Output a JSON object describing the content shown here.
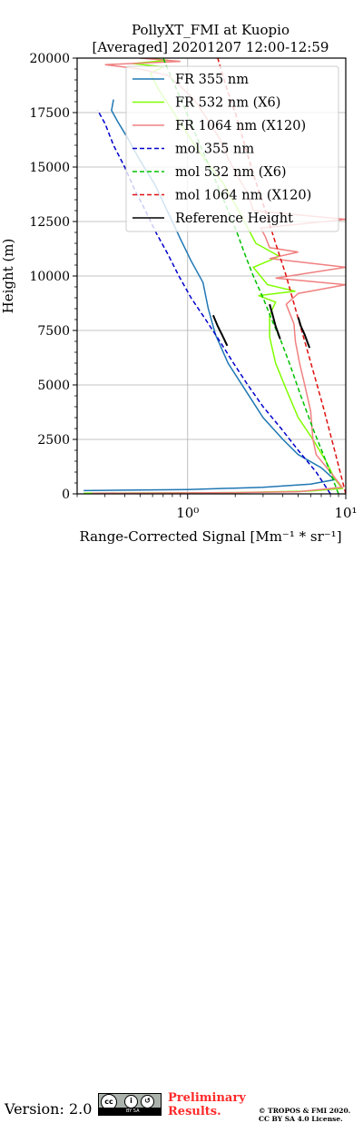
{
  "chart_data": {
    "type": "line",
    "title_line1": "PollyXT_FMI at Kuopio",
    "title_line2": "[Averaged] 20201207 12:00-12:59",
    "xlabel": "Range-Corrected Signal [Mm⁻¹ * sr⁻¹]",
    "ylabel": "Height (m)",
    "xscale": "log",
    "xlim": [
      0.2,
      10
    ],
    "ylim": [
      0,
      20000
    ],
    "xticks": [
      {
        "value": 1,
        "label": "10⁰"
      },
      {
        "value": 10,
        "label": "10¹"
      }
    ],
    "yticks": [
      0,
      2500,
      5000,
      7500,
      10000,
      12500,
      15000,
      17500,
      20000
    ],
    "ytick_labels": [
      "0",
      "2500",
      "5000",
      "7500",
      "10000",
      "12500",
      "15000",
      "17500",
      "20000"
    ],
    "grid": true,
    "legend_position": "top-right",
    "series": [
      {
        "name": "FR 355 nm",
        "color": "#1f77b4",
        "style": "solid",
        "points": [
          [
            0.22,
            150
          ],
          [
            1,
            200
          ],
          [
            3,
            300
          ],
          [
            6,
            450
          ],
          [
            8.5,
            650
          ],
          [
            7,
            1200
          ],
          [
            5,
            1800
          ],
          [
            4,
            2500
          ],
          [
            3,
            3500
          ],
          [
            2.3,
            4800
          ],
          [
            1.8,
            6000
          ],
          [
            1.5,
            7300
          ],
          [
            1.35,
            8500
          ],
          [
            1.25,
            9700
          ],
          [
            1.05,
            10700
          ],
          [
            0.9,
            11700
          ],
          [
            0.8,
            12500
          ],
          [
            0.72,
            13200
          ],
          [
            0.62,
            14200
          ],
          [
            0.5,
            15300
          ],
          [
            0.42,
            16300
          ],
          [
            0.36,
            17100
          ],
          [
            0.33,
            17600
          ],
          [
            0.34,
            18100
          ]
        ]
      },
      {
        "name": "FR 532 nm (X6)",
        "color": "#7fff00",
        "style": "solid",
        "points": [
          [
            0.22,
            30
          ],
          [
            2,
            60
          ],
          [
            6,
            130
          ],
          [
            9.5,
            250
          ],
          [
            8.5,
            700
          ],
          [
            7.5,
            1500
          ],
          [
            6.2,
            2500
          ],
          [
            5,
            3500
          ],
          [
            4.2,
            4800
          ],
          [
            3.6,
            6000
          ],
          [
            3.3,
            7200
          ],
          [
            3.3,
            8200
          ],
          [
            3.6,
            8800
          ],
          [
            2.8,
            9100
          ],
          [
            4.8,
            9300
          ],
          [
            3.2,
            9600
          ],
          [
            2.6,
            10400
          ],
          [
            3.8,
            10900
          ],
          [
            2.7,
            11500
          ],
          [
            2.4,
            12200
          ],
          [
            2.1,
            13000
          ],
          [
            1.7,
            14200
          ],
          [
            1.3,
            15300
          ],
          [
            1.0,
            16500
          ],
          [
            0.8,
            17600
          ],
          [
            0.65,
            18600
          ],
          [
            0.58,
            19300
          ],
          [
            0.7,
            19600
          ],
          [
            0.45,
            19750
          ],
          [
            0.75,
            19900
          ],
          [
            0.55,
            20000
          ]
        ]
      },
      {
        "name": "FR 1064 nm (X120)",
        "color": "#f08080",
        "style": "solid",
        "points": [
          [
            0.25,
            30
          ],
          [
            2,
            60
          ],
          [
            5,
            100
          ],
          [
            9.5,
            300
          ],
          [
            8.2,
            900
          ],
          [
            6.5,
            1800
          ],
          [
            6.2,
            2500
          ],
          [
            6,
            3800
          ],
          [
            5.5,
            5000
          ],
          [
            5.1,
            6000
          ],
          [
            4.8,
            7000
          ],
          [
            4.7,
            7800
          ],
          [
            4.2,
            8700
          ],
          [
            5,
            9200
          ],
          [
            10,
            9600
          ],
          [
            3.6,
            9900
          ],
          [
            10,
            10400
          ],
          [
            3.3,
            10800
          ],
          [
            5,
            11100
          ],
          [
            3.3,
            11300
          ],
          [
            3.1,
            11800
          ],
          [
            2.9,
            12200
          ],
          [
            10,
            12600
          ],
          [
            2.6,
            13000
          ],
          [
            2.4,
            13800
          ],
          [
            2.1,
            14500
          ],
          [
            1.8,
            15400
          ],
          [
            1.6,
            16300
          ],
          [
            1.3,
            17300
          ],
          [
            1.1,
            18100
          ],
          [
            0.9,
            18700
          ],
          [
            0.75,
            19200
          ],
          [
            0.5,
            19500
          ],
          [
            0.3,
            19700
          ],
          [
            0.9,
            19850
          ],
          [
            0.5,
            20000
          ]
        ]
      },
      {
        "name": "mol 355 nm",
        "color": "#0000cd",
        "style": "dashed",
        "points": [
          [
            8,
            0
          ],
          [
            6.5,
            1000
          ],
          [
            5,
            2000
          ],
          [
            3.9,
            3000
          ],
          [
            3,
            4000
          ],
          [
            2.4,
            5000
          ],
          [
            1.95,
            6000
          ],
          [
            1.6,
            7000
          ],
          [
            1.3,
            8000
          ],
          [
            1.05,
            9000
          ],
          [
            0.88,
            10000
          ],
          [
            0.75,
            11000
          ],
          [
            0.63,
            12000
          ],
          [
            0.54,
            13000
          ],
          [
            0.46,
            14000
          ],
          [
            0.4,
            15000
          ],
          [
            0.34,
            16000
          ],
          [
            0.3,
            17000
          ],
          [
            0.27,
            17600
          ]
        ]
      },
      {
        "name": "mol 532 nm (X6)",
        "color": "#00c000",
        "style": "dashed",
        "points": [
          [
            9,
            0
          ],
          [
            7.5,
            1500
          ],
          [
            6.2,
            3000
          ],
          [
            5.2,
            4500
          ],
          [
            4.4,
            6000
          ],
          [
            3.9,
            7000
          ],
          [
            3.4,
            8000
          ],
          [
            3,
            9000
          ],
          [
            2.6,
            10000
          ],
          [
            2.3,
            11000
          ],
          [
            2.05,
            12000
          ],
          [
            1.8,
            13000
          ],
          [
            1.58,
            14000
          ],
          [
            1.38,
            15000
          ],
          [
            1.2,
            16000
          ],
          [
            1.05,
            17000
          ],
          [
            0.92,
            18000
          ],
          [
            0.8,
            19000
          ],
          [
            0.7,
            20000
          ]
        ]
      },
      {
        "name": "mol 1064 nm (X120)",
        "color": "#e01010",
        "style": "dashed",
        "points": [
          [
            10,
            0
          ],
          [
            8.5,
            2000
          ],
          [
            7.2,
            4000
          ],
          [
            6.3,
            5500
          ],
          [
            5.5,
            7000
          ],
          [
            4.8,
            8500
          ],
          [
            4.2,
            10000
          ],
          [
            3.6,
            11500
          ],
          [
            3.1,
            13000
          ],
          [
            2.65,
            14500
          ],
          [
            2.3,
            16000
          ],
          [
            2.0,
            17500
          ],
          [
            1.75,
            18700
          ],
          [
            1.55,
            20000
          ]
        ]
      },
      {
        "name": "Reference Height",
        "color": "#000000",
        "style": "solid",
        "segments": [
          [
            [
              1.45,
              8200
            ],
            [
              1.55,
              7700
            ],
            [
              1.65,
              7300
            ],
            [
              1.78,
              6800
            ]
          ],
          [
            [
              3.3,
              8700
            ],
            [
              3.45,
              8200
            ],
            [
              3.6,
              7700
            ],
            [
              3.85,
              7100
            ]
          ],
          [
            [
              5.0,
              8100
            ],
            [
              5.2,
              7700
            ],
            [
              5.5,
              7300
            ],
            [
              5.9,
              6700
            ]
          ]
        ]
      }
    ]
  },
  "footer": {
    "version": "Version: 2.0",
    "cc_label": "BY SA",
    "preliminary_line1": "Preliminary",
    "preliminary_line2": "Results.",
    "copyright_line1": "© TROPOS & FMI 2020.",
    "copyright_line2": "CC BY SA 4.0 License."
  }
}
